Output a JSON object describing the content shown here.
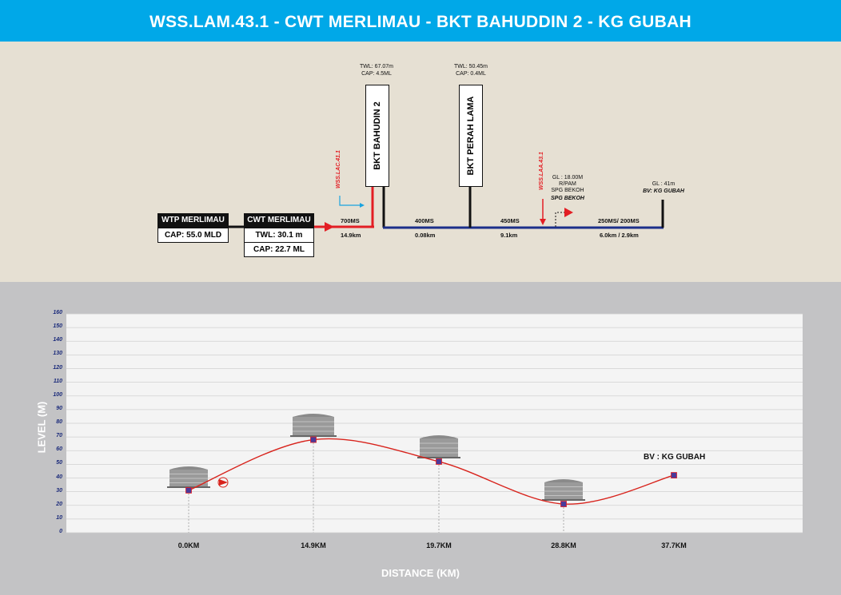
{
  "title": "WSS.LAM.43.1 - CWT MERLIMAU - BKT BAHUDDIN 2 - KG GUBAH",
  "schematic": {
    "wtp": {
      "name": "WTP MERLIMAU",
      "cap": "CAP: 55.0 MLD"
    },
    "cwt": {
      "name": "CWT MERLIMAU",
      "twl": "TWL: 30.1 m",
      "cap": "CAP: 22.7 ML"
    },
    "bahudin": {
      "name": "BKT BAHUDIN 2",
      "twl": "TWL: 67.07m",
      "cap": "CAP: 4.5ML"
    },
    "perah": {
      "name": "BKT PERAH LAMA",
      "twl": "TWL: 50.45m",
      "cap": "CAP: 0.4ML"
    },
    "lac_label": "WSS.LAC.41.1",
    "laa_label": "WSS.LAA.43.1",
    "bekoh": {
      "gl": "GL : 18.00M",
      "rpam": "R/PAM",
      "spg": "SPG BEKOH",
      "spg_red": "SPG BEKOH"
    },
    "gubah": {
      "gl": "GL : 41m",
      "bv": "BV: KG GUBAH"
    },
    "pipes": [
      {
        "size": "700MS",
        "length": "14.9km"
      },
      {
        "size": "400MS",
        "length": "0.08km"
      },
      {
        "size": "450MS",
        "length": "9.1km"
      },
      {
        "size": "250MS/ 200MS",
        "length": "6.0km / 2.9km"
      }
    ],
    "colors": {
      "red_main": "#e31e24",
      "blue_main": "#1c2f8a",
      "black": "#111111"
    }
  },
  "chart_data": {
    "type": "line",
    "xlabel": "DISTANCE (KM)",
    "ylabel": "LEVEL (M)",
    "ylim": [
      0,
      160
    ],
    "yticks": [
      0,
      10,
      20,
      30,
      40,
      50,
      60,
      70,
      80,
      90,
      100,
      110,
      120,
      130,
      140,
      150,
      160
    ],
    "x_labels": [
      "0.0KM",
      "14.9KM",
      "19.7KM",
      "28.8KM",
      "37.7KM"
    ],
    "x": [
      0.0,
      14.9,
      19.7,
      28.8,
      37.7
    ],
    "values": [
      31,
      68,
      52,
      21,
      42
    ],
    "annotations": [
      {
        "text": "BV : KG GUBAH",
        "at_x": 37.7
      }
    ],
    "grid": true,
    "line_color": "#d8231c",
    "marker_color": "#4a3a9a"
  }
}
